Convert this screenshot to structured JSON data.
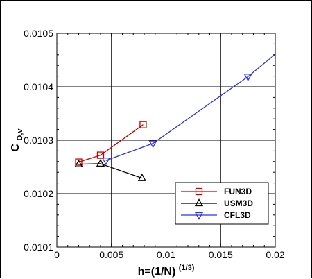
{
  "chart_data": {
    "type": "line",
    "title": "",
    "xlabel": {
      "main": "h=(1/N)",
      "sup": "(1/3)"
    },
    "ylabel": {
      "main": "C",
      "sub": "D,v"
    },
    "xlim": [
      0,
      0.02
    ],
    "ylim": [
      0.0101,
      0.0105
    ],
    "xticks": [
      0,
      0.005,
      0.01,
      0.015,
      0.02
    ],
    "xtick_labels": [
      "0",
      "0.005",
      "0.01",
      "0.015",
      "0.02"
    ],
    "yticks": [
      0.0101,
      0.0102,
      0.0103,
      0.0104,
      0.0105
    ],
    "ytick_labels": [
      "0.0101",
      "0.0102",
      "0.0103",
      "0.0104",
      "0.0105"
    ],
    "grid": true,
    "legend_position": "bottom-right",
    "series": [
      {
        "name": "FUN3D",
        "color": "#cc0000",
        "marker": "square",
        "x": [
          0.002,
          0.004,
          0.0079
        ],
        "y": [
          0.010259,
          0.010272,
          0.010329
        ]
      },
      {
        "name": "USM3D",
        "color": "#000000",
        "marker": "triangle-up",
        "x": [
          0.002,
          0.004,
          0.0078
        ],
        "y": [
          0.010255,
          0.010256,
          0.010229
        ]
      },
      {
        "name": "CFL3D",
        "color": "#3333dd",
        "marker": "triangle-down",
        "x": [
          0.0045,
          0.0088,
          0.0175,
          0.02
        ],
        "y": [
          0.010262,
          0.010294,
          0.010419,
          0.010461
        ]
      }
    ]
  }
}
